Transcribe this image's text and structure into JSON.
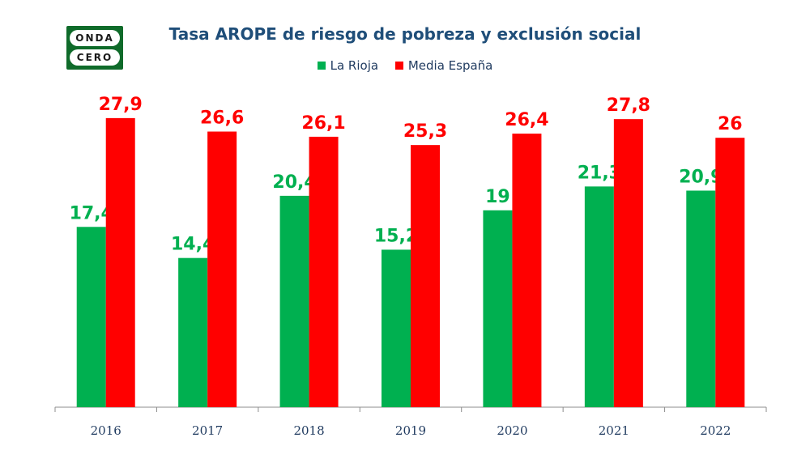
{
  "logo": {
    "line1": "ONDA",
    "line2": "CERO"
  },
  "chart_data": {
    "type": "bar",
    "title": "Tasa AROPE de riesgo de pobreza y exclusión social",
    "categories": [
      "2016",
      "2017",
      "2018",
      "2019",
      "2020",
      "2021",
      "2022"
    ],
    "series": [
      {
        "name": "La Rioja",
        "color": "#00b050",
        "values": [
          17.4,
          14.4,
          20.4,
          15.2,
          19,
          21.3,
          20.9
        ],
        "labels": [
          "17,4",
          "14,4",
          "20,4",
          "15,2",
          "19",
          "21,3",
          "20,9"
        ]
      },
      {
        "name": "Media España",
        "color": "#ff0000",
        "values": [
          27.9,
          26.6,
          26.1,
          25.3,
          26.4,
          27.8,
          26
        ],
        "labels": [
          "27,9",
          "26,6",
          "26,1",
          "25,3",
          "26,4",
          "27,8",
          "26"
        ]
      }
    ],
    "ylim": [
      0,
      35
    ],
    "xlabel": "",
    "ylabel": "",
    "legend_position": "top-center",
    "grid": false
  }
}
